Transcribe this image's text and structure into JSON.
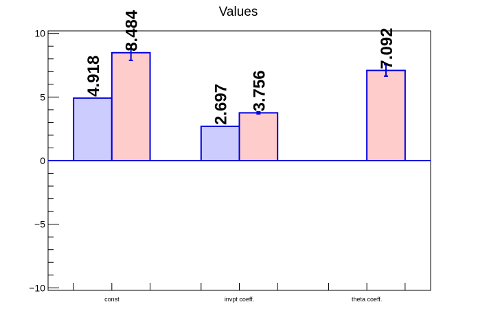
{
  "chart_data": {
    "type": "bar",
    "title": "Values",
    "xlabel": "",
    "ylabel": "",
    "categories": [
      "const",
      "invpt coeff.",
      "theta coeff."
    ],
    "ylim": [
      -10.2,
      10.2
    ],
    "yticks": [
      -10,
      -5,
      0,
      5,
      10
    ],
    "ytick_labels": [
      "−10",
      "−5",
      "0",
      "5",
      "10"
    ],
    "grid": false,
    "legend": "none",
    "series": [
      {
        "values": [
          4.918,
          2.697,
          null
        ],
        "errors": [
          0,
          0,
          0
        ],
        "labels": [
          "4.918",
          "2.697",
          ""
        ],
        "fill": "#ccccff",
        "stroke": "#0000dd"
      },
      {
        "values": [
          8.484,
          3.756,
          7.092
        ],
        "errors": [
          0.6,
          0.08,
          0.45
        ],
        "labels": [
          "8.484",
          "3.756",
          "7.092"
        ],
        "fill": "#ffcccc",
        "stroke": "#0000dd"
      }
    ]
  }
}
